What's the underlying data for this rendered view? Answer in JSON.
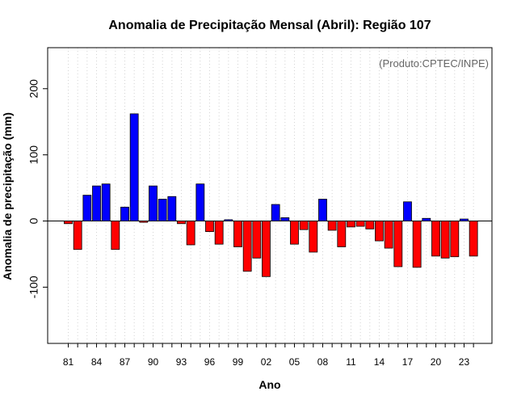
{
  "chart_data": {
    "type": "bar",
    "title": "Anomalia de Precipitação Mensal (Abril): Região 107",
    "xlabel": "Ano",
    "ylabel": "Anomalia de precipitação (mm)",
    "annotation": "(Produto:CPTEC/INPE)",
    "annotation_placement": "top-right",
    "ylim": [
      -185,
      262
    ],
    "yticks": [
      -100,
      0,
      100,
      200
    ],
    "yticks_labels": [
      "-100",
      "0",
      "100",
      "200"
    ],
    "x": [
      1981,
      1982,
      1983,
      1984,
      1985,
      1986,
      1987,
      1988,
      1989,
      1990,
      1991,
      1992,
      1993,
      1994,
      1995,
      1996,
      1997,
      1998,
      1999,
      2000,
      2001,
      2002,
      2003,
      2004,
      2005,
      2006,
      2007,
      2008,
      2009,
      2010,
      2011,
      2012,
      2013,
      2014,
      2015,
      2016,
      2017,
      2018,
      2019,
      2020,
      2021,
      2022,
      2023,
      2024
    ],
    "values": [
      -4,
      -43,
      39,
      53,
      56,
      -43,
      21,
      162,
      -2,
      53,
      33,
      37,
      -4,
      -36,
      56,
      -16,
      -35,
      2,
      -39,
      -76,
      -56,
      -84,
      25,
      5,
      -35,
      -13,
      -47,
      33,
      -14,
      -39,
      -9,
      -8,
      -12,
      -30,
      -41,
      -69,
      29,
      -70,
      4,
      -53,
      -56,
      -54,
      3,
      -53
    ],
    "xtick_years": [
      1981,
      1984,
      1987,
      1990,
      1993,
      1996,
      1999,
      2002,
      2005,
      2008,
      2011,
      2014,
      2017,
      2020,
      2023
    ],
    "xtick_labels": [
      "81",
      "84",
      "87",
      "90",
      "93",
      "96",
      "99",
      "02",
      "05",
      "08",
      "11",
      "14",
      "17",
      "20",
      "23"
    ],
    "grid": "vertical-dotted",
    "colors": {
      "positive": "#0000ff",
      "negative": "#ff0000",
      "bar_edge": "#000000",
      "grid": "#d3d3d3",
      "annotation": "#666666"
    }
  }
}
